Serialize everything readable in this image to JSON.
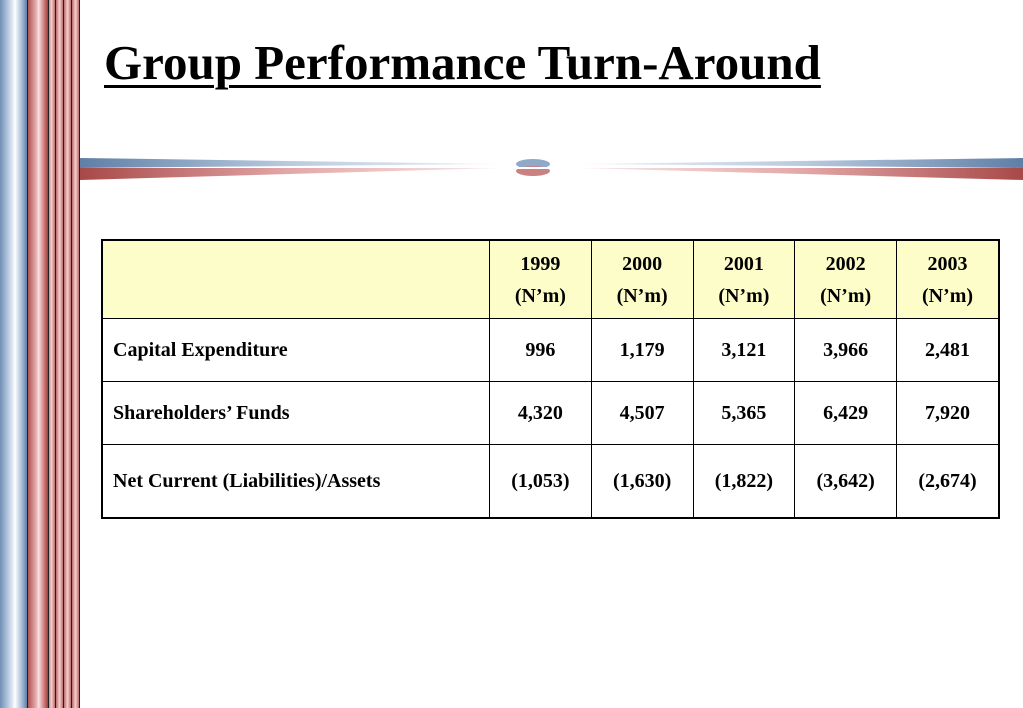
{
  "slide": {
    "title": "Group Performance Turn-Around"
  },
  "table": {
    "columns": [
      {
        "year": "1999",
        "unit": "(N’m)"
      },
      {
        "year": "2000",
        "unit": "(N’m)"
      },
      {
        "year": "2001",
        "unit": "(N’m)"
      },
      {
        "year": "2002",
        "unit": "(N’m)"
      },
      {
        "year": "2003",
        "unit": "(N’m)"
      }
    ],
    "rows": [
      {
        "label": "Capital Expenditure",
        "values": [
          "996",
          "1,179",
          "3,121",
          "3,966",
          "2,481"
        ]
      },
      {
        "label": "Shareholders’ Funds",
        "values": [
          "4,320",
          "4,507",
          "5,365",
          "6,429",
          "7,920"
        ]
      },
      {
        "label": "Net Current (Liabilities)/Assets",
        "values": [
          "(1,053)",
          "(1,630)",
          "(1,822)",
          "(3,642)",
          "(2,674)"
        ]
      }
    ],
    "header_color": "#fdfdc9"
  },
  "theme": {
    "stripe_blue": "#6f8fb6",
    "stripe_red": "#a84848"
  }
}
